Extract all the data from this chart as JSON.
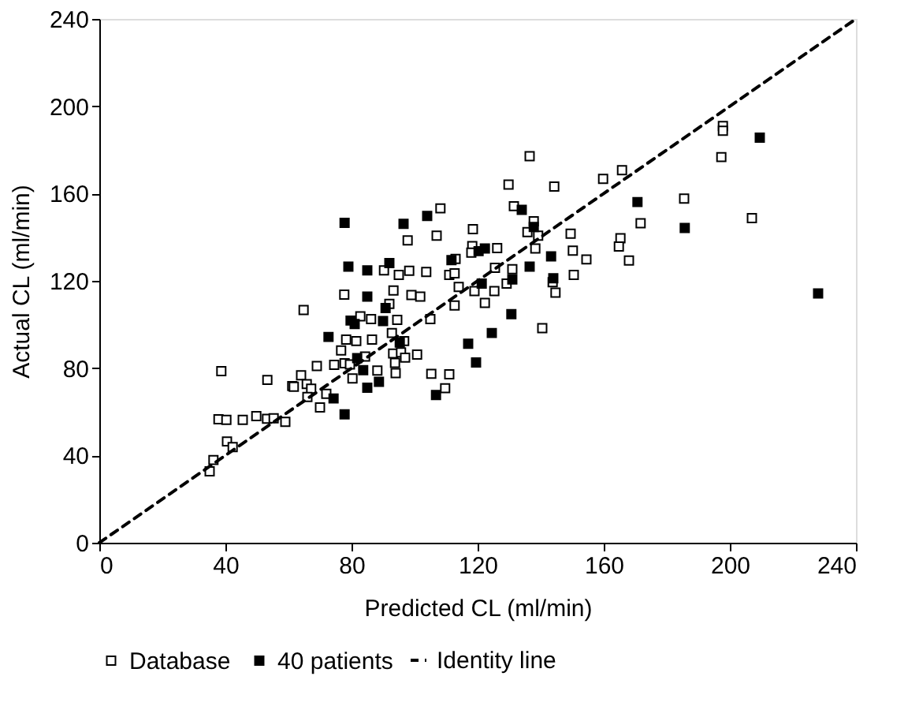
{
  "chart_data": {
    "type": "scatter",
    "xlabel": "Predicted CL (ml/min)",
    "ylabel": "Actual CL (ml/min)",
    "xlim": [
      0,
      240
    ],
    "ylim": [
      0,
      240
    ],
    "xticks": [
      0,
      40,
      80,
      120,
      160,
      200,
      240
    ],
    "yticks": [
      0,
      40,
      80,
      120,
      160,
      200,
      240
    ],
    "grid": false,
    "legend": "bottom",
    "marker": "square",
    "series": [
      {
        "name": "Database",
        "color": "#ffffff",
        "x": [
          38.7,
          53.3,
          61.2,
          37.8,
          40.3,
          45.5,
          49.8,
          53.2,
          55.3,
          59,
          40.5,
          42.3,
          36.2,
          35,
          136.5,
          129.8,
          131.5,
          108.2,
          97.8,
          107,
          118.5,
          118.3,
          118,
          126.2,
          135.8,
          113,
          125.5,
          131,
          90.3,
          95,
          98.3,
          103.7,
          111,
          112.7,
          129.2,
          125.3,
          114,
          119,
          93.3,
          77.7,
          99,
          101.8,
          92,
          112.7,
          122.3,
          64.8,
          82.8,
          86.2,
          94.5,
          105,
          92.8,
          78.3,
          81.5,
          86.5,
          76.7,
          93.2,
          95.7,
          96.7,
          97,
          100.8,
          74.5,
          77.8,
          79.5,
          84.3,
          69,
          88.2,
          93.8,
          94,
          105.3,
          111,
          109.7,
          64,
          61.7,
          65.8,
          67.2,
          80.3,
          66,
          70,
          72,
          197.8,
          197.8,
          197.3,
          144.3,
          159.8,
          165.8,
          185.5,
          171.7,
          207,
          137.8,
          139.2,
          149.5,
          138.3,
          150.2,
          154.5,
          165.3,
          164.8,
          168,
          150.5,
          143.8,
          144.7,
          140.5
        ],
        "values": [
          78.6,
          74.6,
          71.8,
          56.6,
          56.3,
          56.3,
          58,
          56.8,
          57,
          55.4,
          46.4,
          43.8,
          37.9,
          32.7,
          177.1,
          164.1,
          154.2,
          153.2,
          138.5,
          140.7,
          143.7,
          135.9,
          132.9,
          135,
          142.3,
          130,
          126,
          125.3,
          124.8,
          122.7,
          124.6,
          124.1,
          122.7,
          123.4,
          118.7,
          115.3,
          117.2,
          115.3,
          115.6,
          113.7,
          113.5,
          112.8,
          109.4,
          108.7,
          109.9,
          106.6,
          103.7,
          102.5,
          102.1,
          102.5,
          96.1,
          93.1,
          92.4,
          93.1,
          88.1,
          86.7,
          87.2,
          92.4,
          84.8,
          86.2,
          81.5,
          82.2,
          81.7,
          85.3,
          81,
          78.9,
          82.4,
          77.7,
          77.4,
          77.2,
          70.8,
          76.7,
          71.5,
          72.7,
          70.6,
          75.3,
          66.8,
          62,
          68.2,
          190.9,
          188.8,
          176.7,
          163.2,
          166.7,
          170.7,
          157.7,
          146.4,
          148.7,
          147.3,
          140.7,
          141.6,
          134.8,
          133.8,
          129.8,
          139.5,
          135.7,
          129.3,
          122.7,
          119.4,
          114.6,
          98.3
        ]
      },
      {
        "name": "40 patients",
        "color": "#000000",
        "x": [
          77.8,
          96.5,
          104,
          79,
          85,
          92,
          85,
          90.8,
          79.7,
          81,
          90,
          72.7,
          95.3,
          81.8,
          83.7,
          85,
          88.7,
          74.3,
          77.8,
          106.8,
          111.7,
          120.3,
          122.3,
          121.3,
          131,
          130.7,
          124.5,
          117,
          119.5,
          134,
          136.5,
          137.8,
          143.3,
          144,
          170.7,
          185.7,
          209.5,
          228
        ],
        "values": [
          146.6,
          146.1,
          149.7,
          126.5,
          124.8,
          128.1,
          112.8,
          107.5,
          101.8,
          100.2,
          101.6,
          94.3,
          91.7,
          84.6,
          79.1,
          71,
          73.7,
          66.1,
          58.8,
          67.7,
          129.5,
          133.6,
          134.8,
          118.7,
          120.6,
          104.7,
          96.1,
          91.2,
          82.6,
          152.5,
          126.5,
          144.7,
          131.2,
          121.2,
          156.1,
          144.2,
          185.6,
          114.2
        ]
      },
      {
        "name": "Identity line",
        "color": "#000000",
        "type": "line",
        "marker": "none",
        "line_style": "dashed",
        "x": [
          0,
          240
        ],
        "values": [
          0,
          240
        ]
      }
    ]
  }
}
